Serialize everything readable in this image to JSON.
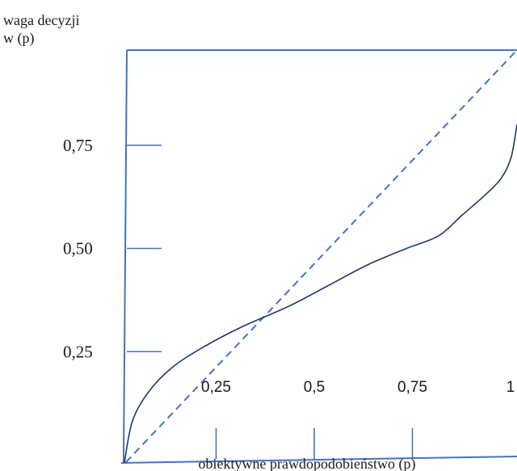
{
  "chart_data": {
    "type": "line",
    "ylabel_line1": "waga decyzji",
    "ylabel_line2": "w (p)",
    "xlabel": "obiektywne prawdopodobieństwo (p)",
    "x_ticks": [
      {
        "value": 0.25,
        "label": "0,25"
      },
      {
        "value": 0.5,
        "label": "0,5"
      },
      {
        "value": 0.75,
        "label": "0,75"
      },
      {
        "value": 1.0,
        "label": "1"
      }
    ],
    "y_ticks": [
      {
        "value": 0.25,
        "label": "0,25"
      },
      {
        "value": 0.5,
        "label": "0,50"
      },
      {
        "value": 0.75,
        "label": "0,75"
      }
    ],
    "xlim": [
      0,
      1
    ],
    "ylim": [
      0,
      1
    ],
    "series": [
      {
        "style": "solid",
        "x": [
          0,
          0.02,
          0.06,
          0.12,
          0.2,
          0.3,
          0.42,
          0.52,
          0.62,
          0.72,
          0.8,
          0.86,
          0.92,
          0.96,
          0.985,
          1.0
        ],
        "y": [
          0,
          0.1,
          0.17,
          0.23,
          0.28,
          0.33,
          0.38,
          0.43,
          0.48,
          0.52,
          0.55,
          0.6,
          0.65,
          0.69,
          0.74,
          0.82
        ]
      },
      {
        "style": "dashed",
        "x": [
          0,
          1
        ],
        "y": [
          0,
          1
        ]
      }
    ],
    "colors": {
      "axis": "#4472c4",
      "curve": "#1f3864",
      "diagonal": "#4472c4"
    }
  }
}
